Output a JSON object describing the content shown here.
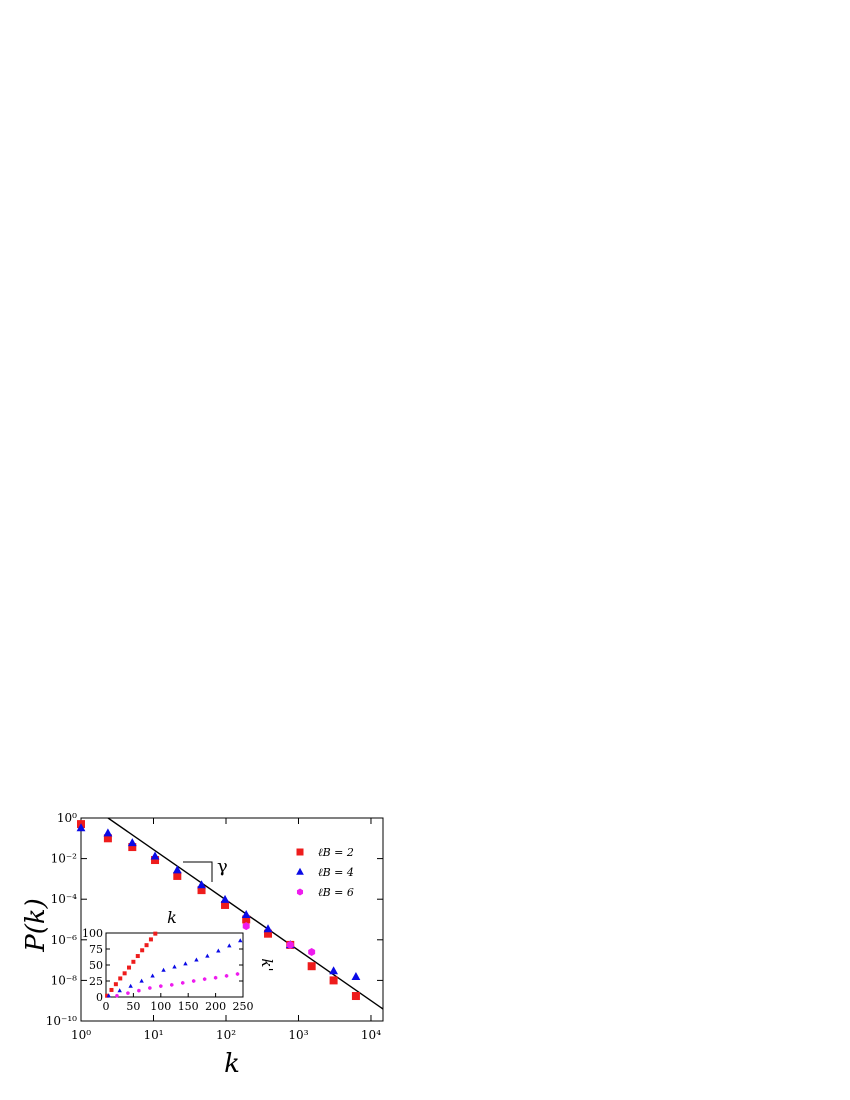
{
  "chart_data": {
    "type": "scatter",
    "log_scale": true,
    "xlabel": "k",
    "ylabel": "P(k)",
    "xlim": [
      1,
      14650
    ],
    "ylim": [
      1e-10,
      1
    ],
    "xticks": [
      {
        "value": 1,
        "label": "10⁰"
      },
      {
        "value": 10,
        "label": "10¹"
      },
      {
        "value": 100,
        "label": "10²"
      },
      {
        "value": 1000,
        "label": "10³"
      },
      {
        "value": 10000,
        "label": "10⁴"
      }
    ],
    "yticks": [
      {
        "value": 1e-10,
        "label": "10⁻¹⁰"
      },
      {
        "value": 1e-08,
        "label": "10⁻⁸"
      },
      {
        "value": 1e-06,
        "label": "10⁻⁶"
      },
      {
        "value": 0.0001,
        "label": "10⁻⁴"
      },
      {
        "value": 0.01,
        "label": "10⁻²"
      },
      {
        "value": 1,
        "label": "10⁰"
      }
    ],
    "legend": "upper right",
    "annotation": "γ",
    "series": [
      {
        "name": "ℓB = 2",
        "color": "#ee1c1c",
        "marker": "square",
        "x": [
          1,
          2.35,
          5.1,
          10.5,
          21.3,
          46,
          97,
          190,
          380,
          770,
          1520,
          3050,
          6200
        ],
        "values": [
          0.5,
          0.1,
          0.037,
          0.0085,
          0.0014,
          0.00028,
          5.2e-05,
          1e-05,
          2e-06,
          5.6e-07,
          5e-08,
          1e-08,
          1.7e-09
        ]
      },
      {
        "name": "ℓB = 4",
        "color": "#0a0ae6",
        "marker": "triangle",
        "x": [
          1,
          2.35,
          5.1,
          10.5,
          21.3,
          46,
          97,
          190,
          380,
          770,
          3050,
          6200
        ],
        "values": [
          0.32,
          0.18,
          0.059,
          0.013,
          0.0027,
          0.0005,
          9.5e-05,
          1.7e-05,
          3.4e-06,
          5.6e-07,
          2.9e-08,
          1.5e-08
        ]
      },
      {
        "name": "ℓB = 6",
        "color": "#ee1cee",
        "marker": "hexagon",
        "x": [
          190,
          770,
          1520
        ],
        "values": [
          4.7e-06,
          5.6e-07,
          2.5e-07
        ]
      }
    ],
    "fit": {
      "color": "#000000",
      "x": [
        2.36,
        14650
      ],
      "values": [
        1,
        3.9e-10
      ]
    },
    "inset": {
      "type": "scatter",
      "xlabel": "k",
      "ylabel": "k'",
      "xlim": [
        0,
        250
      ],
      "ylim": [
        0,
        100
      ],
      "xticks": [
        0,
        50,
        100,
        150,
        200,
        250
      ],
      "yticks": [
        0,
        25,
        50,
        75,
        100
      ],
      "series": [
        {
          "color": "#ee1c1c",
          "x": [
            2,
            10,
            18,
            26,
            34,
            42,
            50,
            58,
            66,
            74,
            82,
            90
          ],
          "values": [
            2,
            11,
            20,
            29,
            37,
            46,
            55,
            64,
            73,
            81,
            90,
            99
          ]
        },
        {
          "color": "#0a0ae6",
          "x": [
            5,
            25,
            45,
            65,
            85,
            105,
            125,
            145,
            165,
            185,
            205,
            225,
            245
          ],
          "values": [
            2,
            10,
            17,
            25,
            33,
            42,
            47,
            52,
            58,
            64,
            72,
            80,
            88
          ]
        },
        {
          "color": "#ee1cee",
          "x": [
            20,
            40,
            60,
            80,
            100,
            120,
            140,
            160,
            180,
            200,
            220,
            240
          ],
          "values": [
            2,
            6,
            10,
            14,
            17,
            19,
            22,
            25,
            28,
            30,
            33,
            36
          ]
        }
      ]
    }
  }
}
